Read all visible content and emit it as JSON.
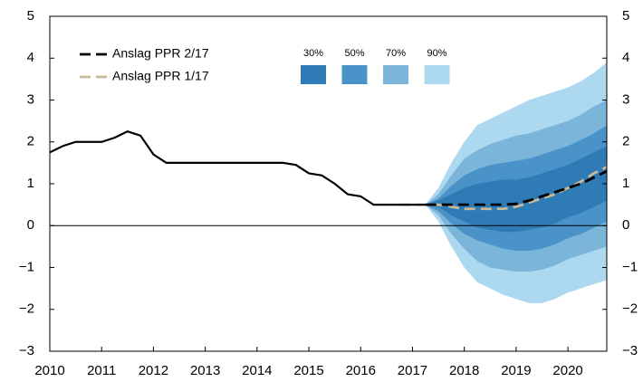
{
  "chart_data": {
    "type": "fan",
    "xlim": [
      2010,
      2020.75
    ],
    "xticks": [
      2010,
      2011,
      2012,
      2013,
      2014,
      2015,
      2016,
      2017,
      2018,
      2019,
      2020
    ],
    "ylim": [
      -3,
      5
    ],
    "yticks": [
      {
        "value": -3,
        "label": "−3"
      },
      {
        "value": -2,
        "label": "−2"
      },
      {
        "value": -1,
        "label": "−1"
      },
      0,
      1,
      2,
      3,
      4,
      5
    ],
    "forecast_start": 2017.25,
    "series": [
      {
        "name": "Anslag PPR 2/17",
        "color": "#000000",
        "x": [
          2010,
          2010.25,
          2010.5,
          2010.75,
          2011,
          2011.25,
          2011.5,
          2011.75,
          2012,
          2012.25,
          2012.5,
          2012.75,
          2013,
          2013.25,
          2013.5,
          2013.75,
          2014,
          2014.25,
          2014.5,
          2014.75,
          2015,
          2015.25,
          2015.5,
          2015.75,
          2016,
          2016.25,
          2016.5,
          2016.75,
          2017,
          2017.25,
          2017.5,
          2017.75,
          2018,
          2018.25,
          2018.5,
          2018.75,
          2019,
          2019.25,
          2019.5,
          2019.75,
          2020,
          2020.25,
          2020.5,
          2020.75
        ],
        "values": [
          1.75,
          1.9,
          2.0,
          2.0,
          2.0,
          2.1,
          2.25,
          2.15,
          1.7,
          1.5,
          1.5,
          1.5,
          1.5,
          1.5,
          1.5,
          1.5,
          1.5,
          1.5,
          1.5,
          1.45,
          1.25,
          1.2,
          1.0,
          0.75,
          0.7,
          0.5,
          0.5,
          0.5,
          0.5,
          0.5,
          0.5,
          0.5,
          0.5,
          0.5,
          0.5,
          0.5,
          0.52,
          0.6,
          0.7,
          0.8,
          0.9,
          1.0,
          1.15,
          1.3
        ]
      },
      {
        "name": "Anslag PPR 1/17",
        "color": "#c8b99a",
        "x": [
          2016.75,
          2017,
          2017.25,
          2017.5,
          2017.75,
          2018,
          2018.25,
          2018.5,
          2018.75,
          2019,
          2019.25,
          2019.5,
          2019.75,
          2020,
          2020.25,
          2020.5,
          2020.75
        ],
        "values": [
          0.5,
          0.5,
          0.5,
          0.5,
          0.45,
          0.4,
          0.4,
          0.4,
          0.4,
          0.45,
          0.55,
          0.65,
          0.75,
          0.9,
          1.05,
          1.25,
          1.4
        ]
      }
    ],
    "band_x": [
      2017.25,
      2017.5,
      2017.75,
      2018,
      2018.25,
      2018.5,
      2018.75,
      2019,
      2019.25,
      2019.5,
      2019.75,
      2020,
      2020.25,
      2020.5,
      2020.75
    ],
    "bands": [
      {
        "name": "30%",
        "color": "#2e7bb6",
        "upper": [
          0.5,
          0.6,
          0.75,
          0.9,
          1.0,
          1.05,
          1.1,
          1.1,
          1.15,
          1.25,
          1.35,
          1.45,
          1.6,
          1.75,
          1.9
        ],
        "lower": [
          0.5,
          0.45,
          0.25,
          0.1,
          -0.05,
          -0.1,
          -0.15,
          -0.15,
          -0.1,
          -0.05,
          0.05,
          0.2,
          0.3,
          0.45,
          0.6
        ]
      },
      {
        "name": "50%",
        "color": "#4a93c8",
        "upper": [
          0.5,
          0.65,
          0.95,
          1.2,
          1.35,
          1.45,
          1.5,
          1.55,
          1.6,
          1.7,
          1.8,
          1.9,
          2.05,
          2.2,
          2.4
        ],
        "lower": [
          0.5,
          0.35,
          0.05,
          -0.2,
          -0.35,
          -0.45,
          -0.55,
          -0.6,
          -0.6,
          -0.55,
          -0.45,
          -0.3,
          -0.2,
          -0.05,
          0.1
        ]
      },
      {
        "name": "70%",
        "color": "#7bb5da",
        "upper": [
          0.5,
          0.75,
          1.2,
          1.6,
          1.8,
          1.95,
          2.05,
          2.15,
          2.2,
          2.3,
          2.4,
          2.5,
          2.65,
          2.85,
          3.0
        ],
        "lower": [
          0.5,
          0.25,
          -0.2,
          -0.55,
          -0.85,
          -1.0,
          -1.05,
          -1.1,
          -1.1,
          -1.05,
          -0.95,
          -0.8,
          -0.7,
          -0.6,
          -0.5
        ]
      },
      {
        "name": "90%",
        "color": "#acd8f0",
        "upper": [
          0.5,
          0.9,
          1.5,
          2.0,
          2.4,
          2.55,
          2.7,
          2.85,
          3.0,
          3.1,
          3.2,
          3.3,
          3.45,
          3.65,
          3.9
        ],
        "lower": [
          0.5,
          0.1,
          -0.5,
          -1.0,
          -1.35,
          -1.5,
          -1.65,
          -1.75,
          -1.85,
          -1.85,
          -1.75,
          -1.6,
          -1.5,
          -1.4,
          -1.3
        ]
      }
    ]
  }
}
